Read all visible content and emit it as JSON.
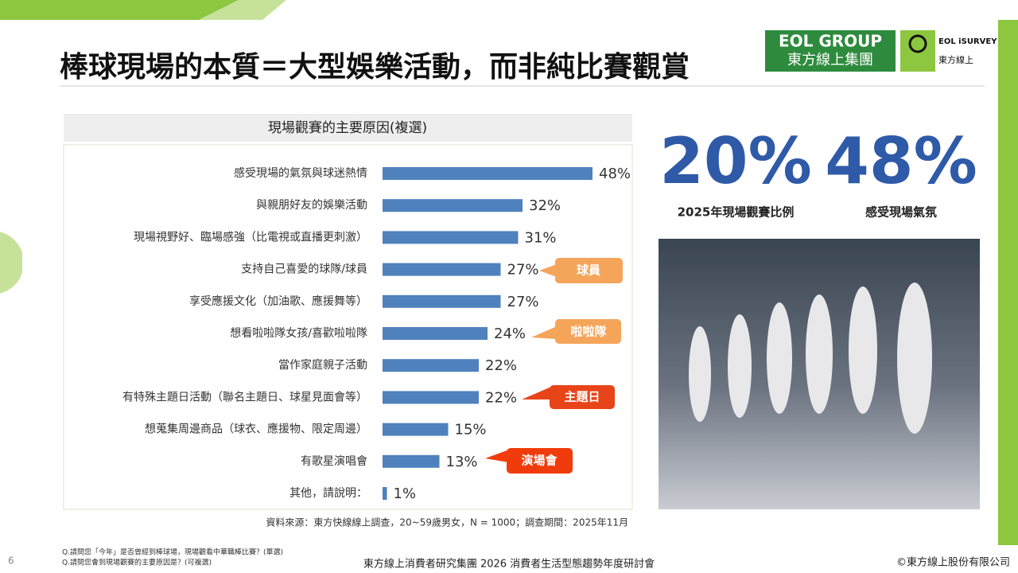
{
  "header": {
    "title": "棒球現場的本質＝大型娛樂活動，而非純比賽觀賞",
    "logo_group": "EOL GROUP",
    "logo_group_cn": "東方線上集團",
    "logo_survey": "EOL iSURVEY",
    "logo_survey_cn": "東方線上"
  },
  "chart_data": {
    "type": "bar",
    "orientation": "horizontal",
    "title": "現場觀賽的主要原因(複選)",
    "categories": [
      "感受現場的氣氛與球迷熱情",
      "與親朋好友的娛樂活動",
      "現場視野好、臨場感強（比電視或直播更刺激）",
      "支持自己喜愛的球隊/球員",
      "享受應援文化（加油歌、應援舞等）",
      "想看啦啦隊女孩/喜歡啦啦隊",
      "當作家庭親子活動",
      "有特殊主題日活動（聯名主題日、球星見面會等）",
      "想蒐集周邊商品（球衣、應援物、限定周邊）",
      "有歌星演唱會",
      "其他，請說明："
    ],
    "values": [
      48,
      32,
      31,
      27,
      27,
      24,
      22,
      22,
      15,
      13,
      1
    ],
    "value_labels": [
      "48%",
      "32%",
      "31%",
      "27%",
      "27%",
      "24%",
      "22%",
      "22%",
      "15%",
      "13%",
      "1%"
    ],
    "color": "#4f81bd",
    "annotations": [
      "球員",
      "啦啦隊",
      "主題日",
      "演場會"
    ],
    "source": "資料來源：東方快線線上調查，20~59歲男女，N = 1000；調查期間：2025年11月"
  },
  "stats": [
    {
      "value": "20%",
      "label": "2025年現場觀賽比例"
    },
    {
      "value": "48%",
      "label": "感受現場氣氛"
    }
  ],
  "footer": {
    "page": "6",
    "questions": [
      "Q.請問您「今年」是否曾經到棒球場，現場觀看中華職棒比賽？(單選)",
      "Q.請問您會到現場觀賽的主要原因是？(可複選)"
    ],
    "event": "東方線上消費者研究集團 2026 消費者生活型態趨勢年度研討會",
    "copyright": "©東方線上股份有限公司"
  }
}
